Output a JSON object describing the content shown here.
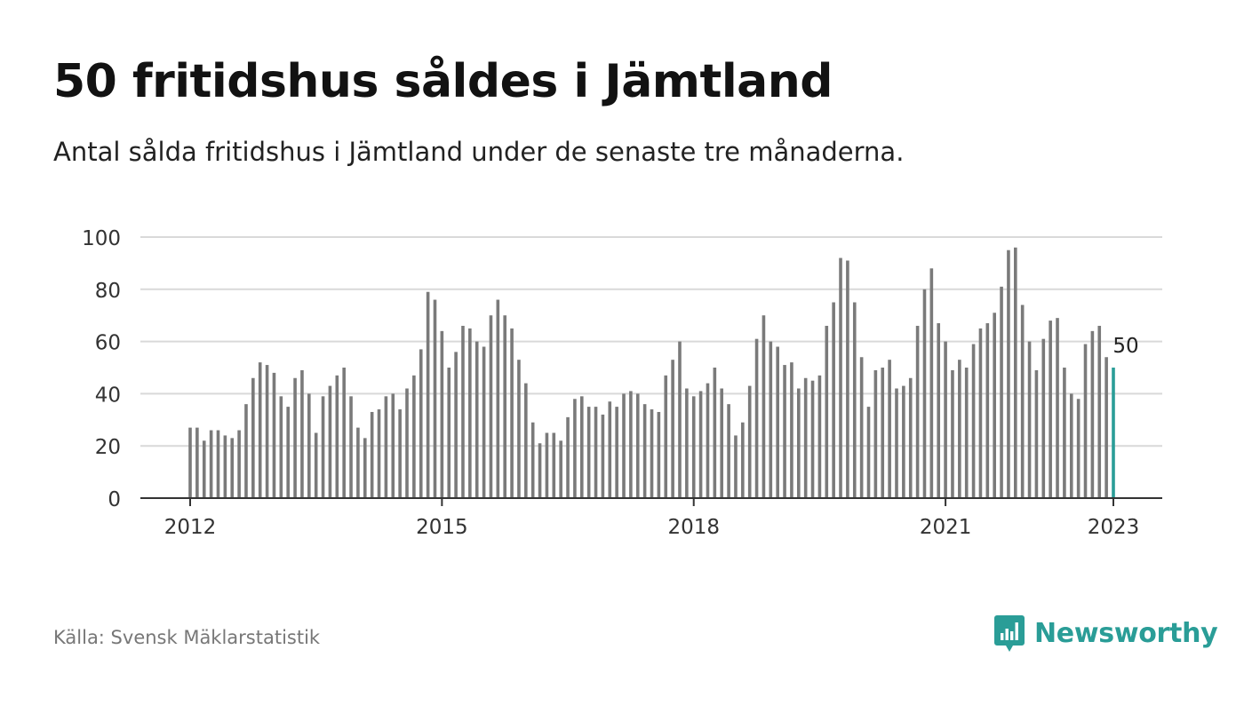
{
  "title": "50 fritidshus såldes i Jämtland",
  "subtitle": "Antal sålda fritidshus i Jämtland under de senaste tre månaderna.",
  "source": "Källa: Svensk Mäklarstatistik",
  "brand": "Newsworthy",
  "colors": {
    "bar": "#7a7a7a",
    "highlight": "#2a9d97",
    "grid": "#d9d9d9",
    "axis": "#333333",
    "text": "#333333"
  },
  "chart_data": {
    "type": "bar",
    "ylim": [
      0,
      100
    ],
    "yticks": [
      0,
      20,
      40,
      60,
      80,
      100
    ],
    "x_range": [
      "2012-01",
      "2023-01"
    ],
    "xticks": [
      {
        "month": "2012-01",
        "label": "2012"
      },
      {
        "month": "2015-01",
        "label": "2015"
      },
      {
        "month": "2018-01",
        "label": "2018"
      },
      {
        "month": "2021-01",
        "label": "2021"
      },
      {
        "month": "2023-01",
        "label": "2023"
      }
    ],
    "grid": true,
    "highlight_label": "50",
    "series": [
      {
        "values": [
          27,
          27,
          22,
          26,
          26,
          24,
          23,
          26,
          36,
          46,
          52,
          51,
          48,
          39,
          35,
          46,
          49,
          40,
          25,
          39,
          43,
          47,
          50,
          39,
          27,
          23,
          33,
          34,
          39,
          40,
          34,
          42,
          47,
          57,
          79,
          76,
          64,
          50,
          56,
          66,
          65,
          60,
          58,
          70,
          76,
          70,
          65,
          53,
          44,
          29,
          21,
          25,
          25,
          22,
          31,
          38,
          39,
          35,
          35,
          32,
          37,
          35,
          40,
          41,
          40,
          36,
          34,
          33,
          47,
          53,
          60,
          42,
          39,
          41,
          44,
          50,
          42,
          36,
          24,
          29,
          43,
          61,
          70,
          60,
          58,
          51,
          52,
          42,
          46,
          45,
          47,
          66,
          75,
          92,
          91,
          75,
          54,
          35,
          49,
          50,
          53,
          42,
          43,
          46,
          66,
          80,
          88,
          67,
          60,
          49,
          53,
          50,
          59,
          65,
          67,
          71,
          81,
          95,
          96,
          74,
          60,
          49,
          61,
          68,
          69,
          50,
          40,
          38,
          59,
          64,
          66,
          54,
          50
        ]
      }
    ]
  }
}
